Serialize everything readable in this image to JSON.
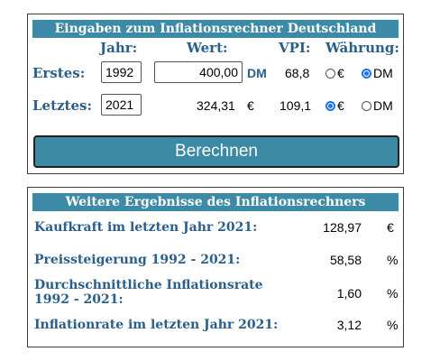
{
  "inputs_panel": {
    "title": "Eingaben zum Inflationsrechner Deutschland",
    "columns": {
      "year": "Jahr:",
      "value": "Wert:",
      "cpi": "VPI:",
      "currency": "Währung:"
    },
    "first_row": {
      "label": "Erstes:",
      "year": "1992",
      "value": "400,00",
      "value_unit": "DM",
      "cpi": "68,8",
      "currency_options": [
        "€",
        "DM"
      ],
      "selected_currency": "DM"
    },
    "last_row": {
      "label": "Letztes:",
      "year": "2021",
      "value": "324,31",
      "value_unit": "€",
      "cpi": "109,1",
      "currency_options": [
        "€",
        "DM"
      ],
      "selected_currency": "€"
    },
    "calculate_label": "Berechnen"
  },
  "results_panel": {
    "title": "Weitere Ergebnisse des Inflationsrechners",
    "rows": [
      {
        "label": "Kaufkraft im letzten Jahr 2021:",
        "value": "128,97",
        "unit": "€"
      },
      {
        "label": "Preissteigerung 1992 - 2021:",
        "value": "58,58",
        "unit": "%"
      },
      {
        "label": "Durchschnittliche Inflationsrate",
        "label2": "1992 - 2021:",
        "value": "1,60",
        "unit": "%"
      },
      {
        "label": "Inflationrate im letzten Jahr 2021:",
        "value": "3,12",
        "unit": "%"
      }
    ]
  },
  "colors": {
    "header_bg": "#3d8aa6",
    "label_blue": "#2a5f8b",
    "radio_selected": "#1a73e8"
  }
}
